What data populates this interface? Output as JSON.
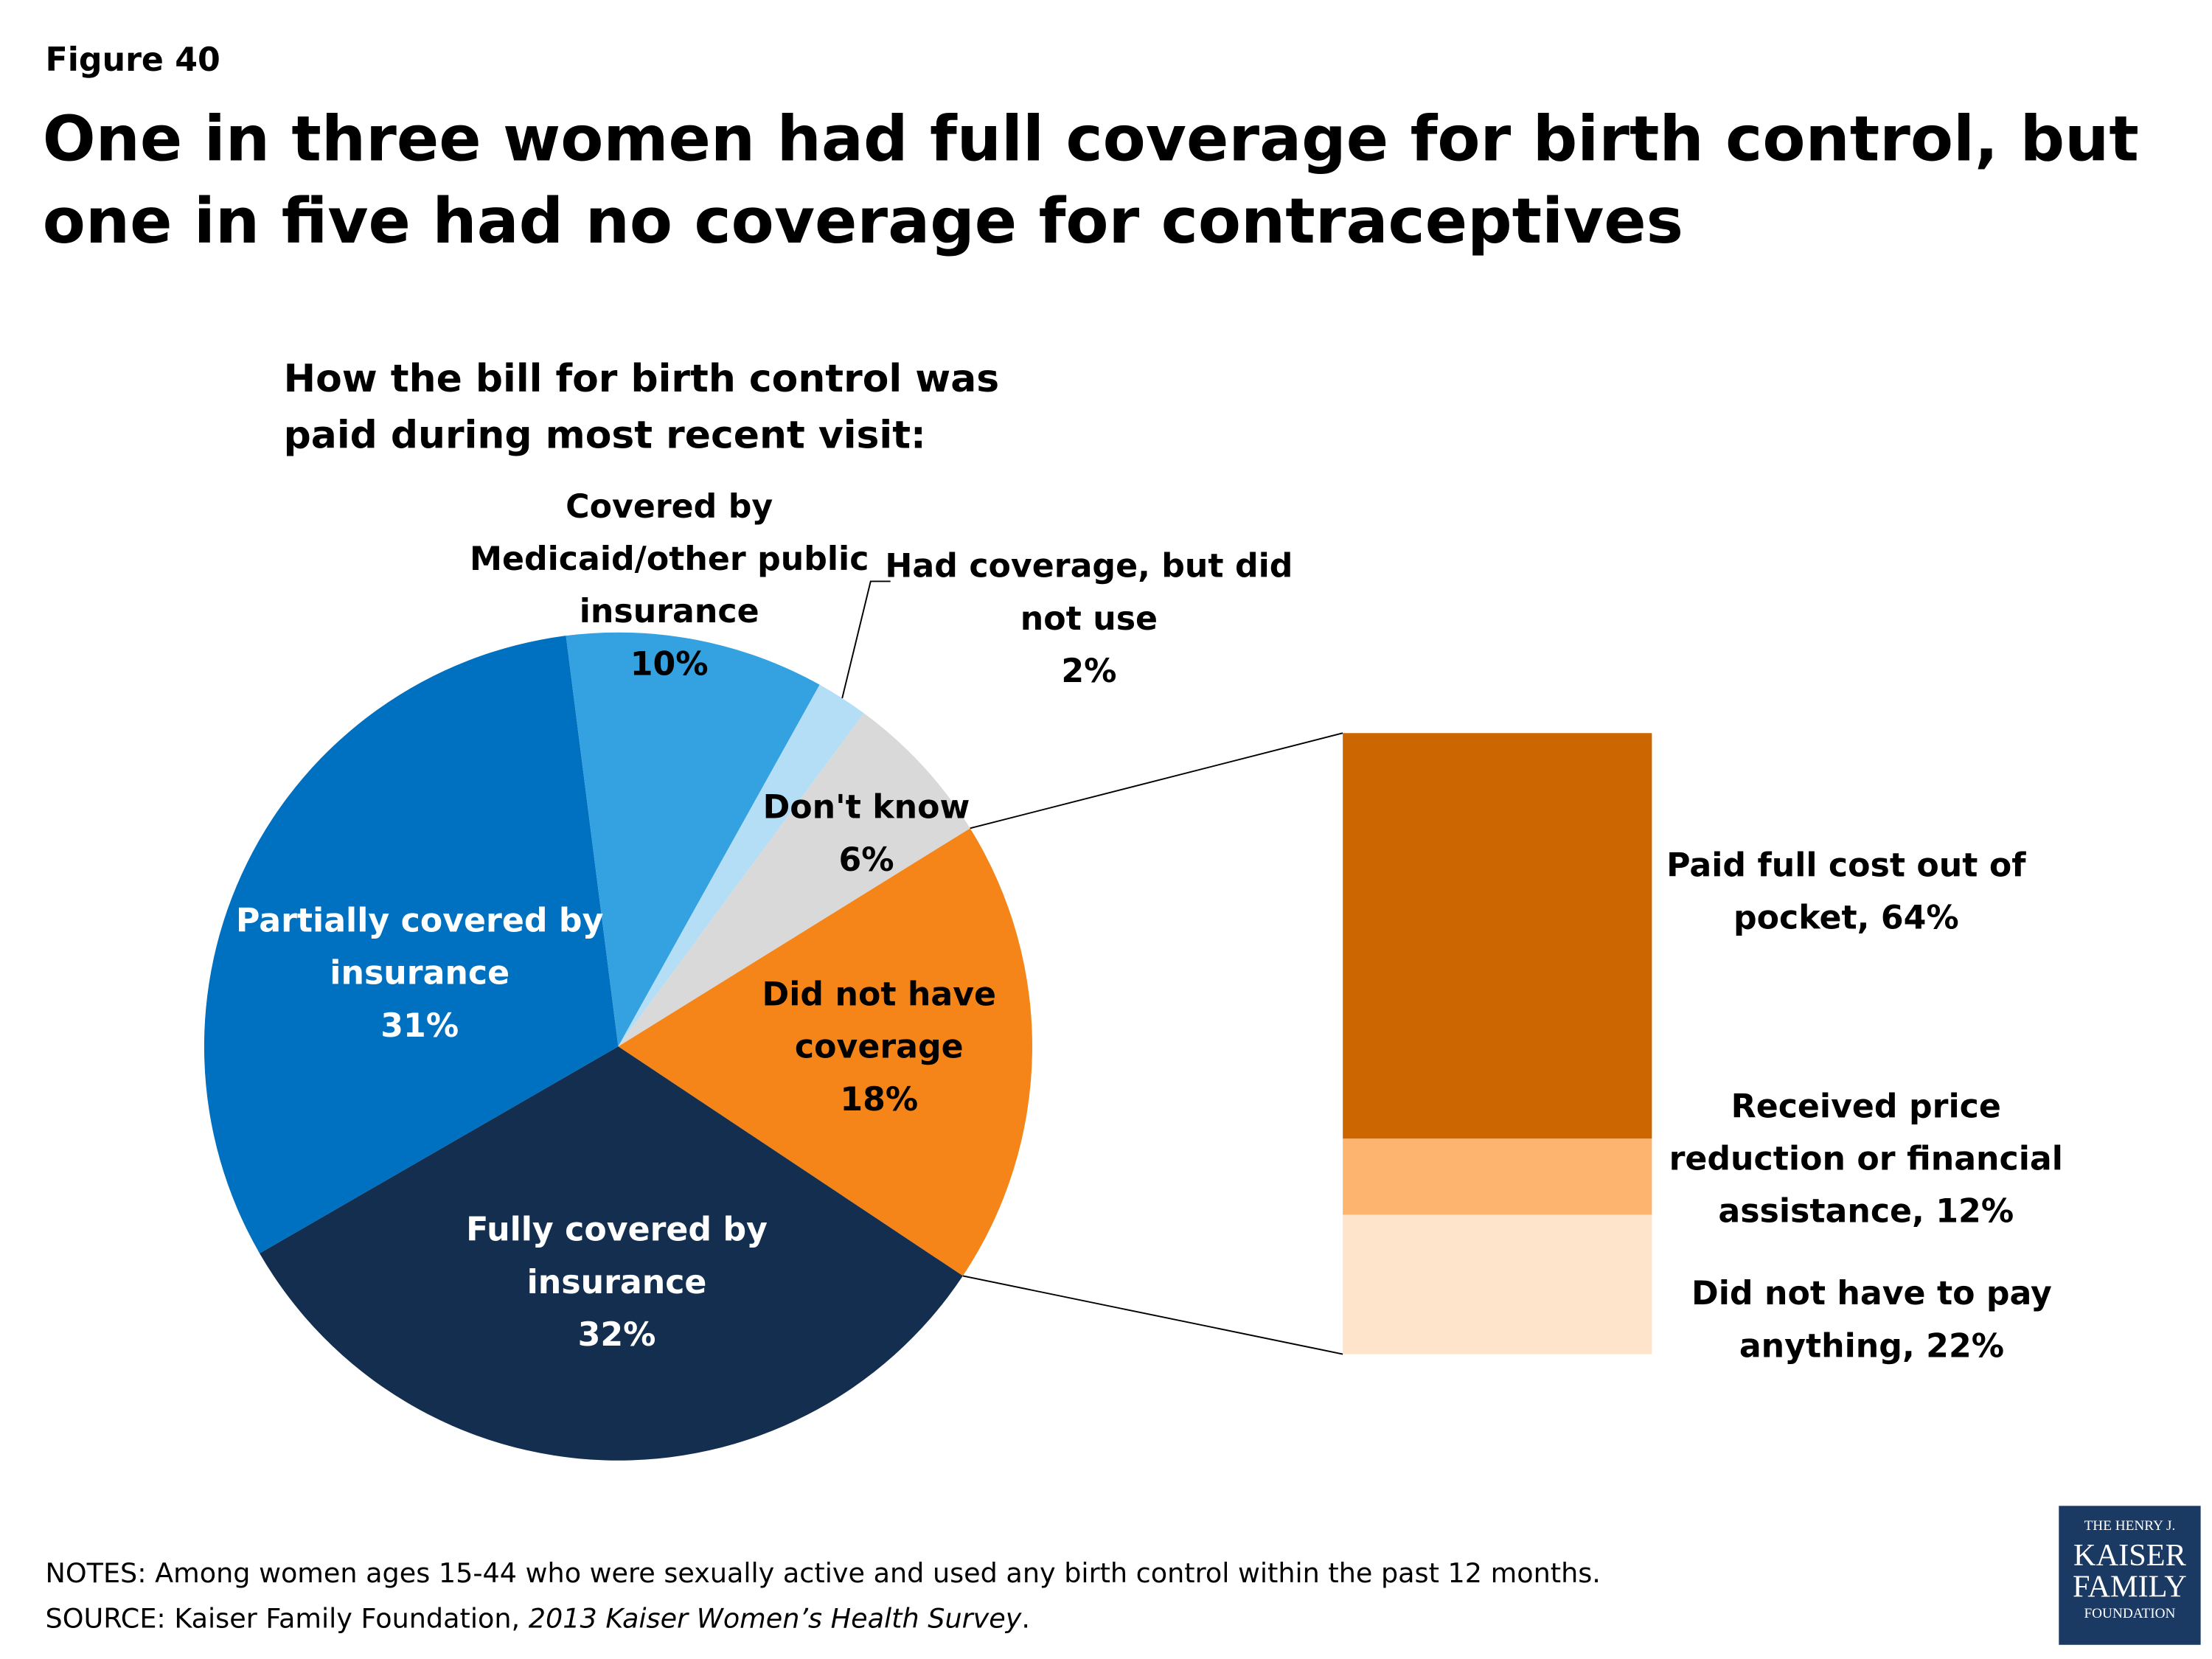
{
  "figure_label": "Figure 40",
  "title": "One in three women had full coverage for birth control, but one in five had no coverage for contraceptives",
  "chart_data": {
    "type": "bar-of-pie",
    "subtitle": "How the bill for birth control was paid during most recent visit:",
    "categories": [
      "Did not have coverage",
      "Fully covered by insurance",
      "Partially covered by insurance",
      "Covered by Medicaid/other public insurance",
      "Had coverage, but did not use",
      "Don't know"
    ],
    "values": [
      18,
      32,
      31,
      10,
      2,
      6
    ],
    "value_labels": [
      "18%",
      "32%",
      "31%",
      "10%",
      "2%",
      "6%"
    ],
    "colors": [
      "#f58518",
      "#132e4e",
      "#0070c0",
      "#34a2e0",
      "#b4def5",
      "#d9d9d9"
    ],
    "breakdown": {
      "categories": [
        "Paid full cost out of pocket,",
        "Received price reduction or financial assistance,",
        "Did not have to pay anything,"
      ],
      "values": [
        64,
        12,
        22
      ],
      "value_labels": [
        "64%",
        "12%",
        "22%"
      ],
      "colors": [
        "#cc6600",
        "#fdb46e",
        "#ffe4cc"
      ]
    }
  },
  "notes": "NOTES: Among women ages 15-44 who were sexually active and used any birth control within the past 12 months.",
  "source": {
    "prefix": "SOURCE: Kaiser Family Foundation, ",
    "italic": "2013 Kaiser Women’s Health Survey",
    "suffix": "."
  },
  "logo": [
    "THE HENRY J.",
    "KAISER",
    "FAMILY",
    "FOUNDATION"
  ]
}
